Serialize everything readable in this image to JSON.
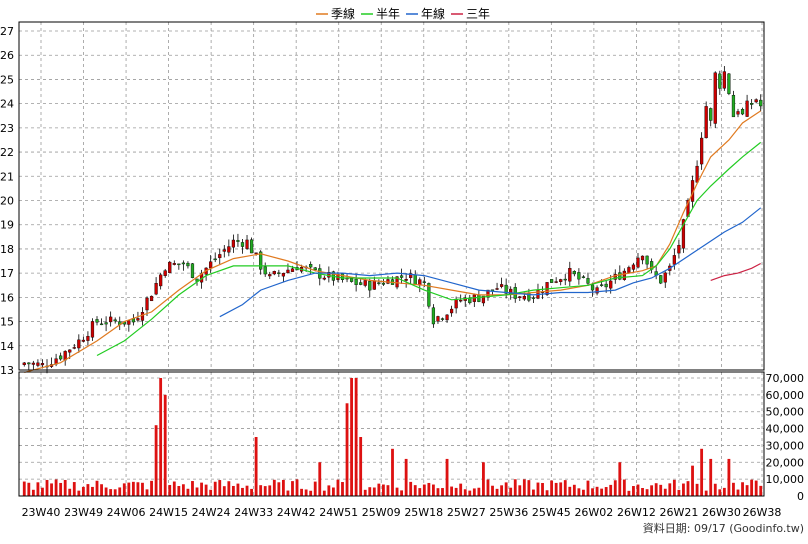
{
  "legend": [
    {
      "label": "季線",
      "color": "#e07a20"
    },
    {
      "label": "半年",
      "color": "#22cc22"
    },
    {
      "label": "年線",
      "color": "#2266cc"
    },
    {
      "label": "三年",
      "color": "#cc2244"
    }
  ],
  "footer_text": "資料日期: 09/17 (Goodinfo.tw)",
  "chart_data": {
    "type": "candlestick+volume",
    "x_ticks": [
      "23W40",
      "23W49",
      "24W06",
      "24W15",
      "24W24",
      "24W33",
      "24W42",
      "24W51",
      "25W09",
      "25W18",
      "25W27",
      "25W36",
      "25W45",
      "26W02",
      "26W12",
      "26W21",
      "26W30",
      "26W38"
    ],
    "price_axis": {
      "ylim": [
        13,
        27
      ],
      "ticks": [
        13,
        14,
        15,
        16,
        17,
        18,
        19,
        20,
        21,
        22,
        23,
        24,
        25,
        26,
        27
      ]
    },
    "volume_axis": {
      "ylim": [
        0,
        70000
      ],
      "ticks": [
        "0",
        "10,000",
        "20,000",
        "30,000",
        "40,000",
        "50,000",
        "60,000",
        "70,000"
      ]
    },
    "grid": true,
    "legend_position": "top-center",
    "candle_up_color": "#cc0000",
    "candle_down_color": "#22aa22",
    "price_series": [
      {
        "name": "季線",
        "color": "#e07a20",
        "points": [
          [
            0,
            12.9
          ],
          [
            8,
            13.3
          ],
          [
            16,
            14.2
          ],
          [
            22,
            15.0
          ],
          [
            28,
            15.4
          ],
          [
            34,
            16.3
          ],
          [
            40,
            17.1
          ],
          [
            46,
            17.6
          ],
          [
            52,
            17.8
          ],
          [
            58,
            17.5
          ],
          [
            64,
            17.1
          ],
          [
            70,
            16.9
          ],
          [
            76,
            16.7
          ],
          [
            82,
            16.6
          ],
          [
            88,
            16.5
          ],
          [
            94,
            16.3
          ],
          [
            100,
            16.1
          ],
          [
            106,
            16.1
          ],
          [
            112,
            16.2
          ],
          [
            118,
            16.3
          ],
          [
            124,
            16.5
          ],
          [
            130,
            16.9
          ],
          [
            136,
            17.1
          ],
          [
            139,
            17.3
          ],
          [
            142,
            18.2
          ],
          [
            145,
            19.5
          ],
          [
            148,
            20.7
          ],
          [
            151,
            21.8
          ],
          [
            155,
            22.5
          ],
          [
            158,
            23.2
          ],
          [
            162,
            23.7
          ]
        ]
      },
      {
        "name": "半年",
        "color": "#22cc22",
        "points": [
          [
            16,
            13.6
          ],
          [
            22,
            14.2
          ],
          [
            28,
            15.1
          ],
          [
            34,
            16.1
          ],
          [
            40,
            16.9
          ],
          [
            46,
            17.3
          ],
          [
            52,
            17.3
          ],
          [
            58,
            17.3
          ],
          [
            64,
            17.0
          ],
          [
            70,
            16.8
          ],
          [
            76,
            16.8
          ],
          [
            82,
            16.8
          ],
          [
            88,
            16.3
          ],
          [
            94,
            15.9
          ],
          [
            100,
            16.0
          ],
          [
            106,
            16.1
          ],
          [
            112,
            16.3
          ],
          [
            118,
            16.4
          ],
          [
            124,
            16.5
          ],
          [
            130,
            16.8
          ],
          [
            136,
            16.9
          ],
          [
            139,
            17.3
          ],
          [
            142,
            18.0
          ],
          [
            145,
            19.0
          ],
          [
            148,
            20.0
          ],
          [
            151,
            20.6
          ],
          [
            155,
            21.3
          ],
          [
            158,
            21.8
          ],
          [
            162,
            22.4
          ]
        ]
      },
      {
        "name": "年線",
        "color": "#2266cc",
        "points": [
          [
            43,
            15.2
          ],
          [
            48,
            15.7
          ],
          [
            52,
            16.3
          ],
          [
            58,
            16.7
          ],
          [
            64,
            17.0
          ],
          [
            70,
            17.0
          ],
          [
            76,
            16.9
          ],
          [
            82,
            17.0
          ],
          [
            88,
            16.9
          ],
          [
            94,
            16.6
          ],
          [
            100,
            16.3
          ],
          [
            106,
            16.2
          ],
          [
            112,
            16.1
          ],
          [
            118,
            16.2
          ],
          [
            124,
            16.2
          ],
          [
            130,
            16.3
          ],
          [
            134,
            16.6
          ],
          [
            138,
            16.8
          ],
          [
            142,
            17.2
          ],
          [
            146,
            17.7
          ],
          [
            150,
            18.2
          ],
          [
            154,
            18.7
          ],
          [
            158,
            19.1
          ],
          [
            162,
            19.7
          ]
        ]
      },
      {
        "name": "三年",
        "color": "#cc2244",
        "points": [
          [
            151,
            16.7
          ],
          [
            154,
            16.9
          ],
          [
            157,
            17.0
          ],
          [
            160,
            17.2
          ],
          [
            162,
            17.4
          ]
        ]
      }
    ],
    "num_bars": 163
  }
}
